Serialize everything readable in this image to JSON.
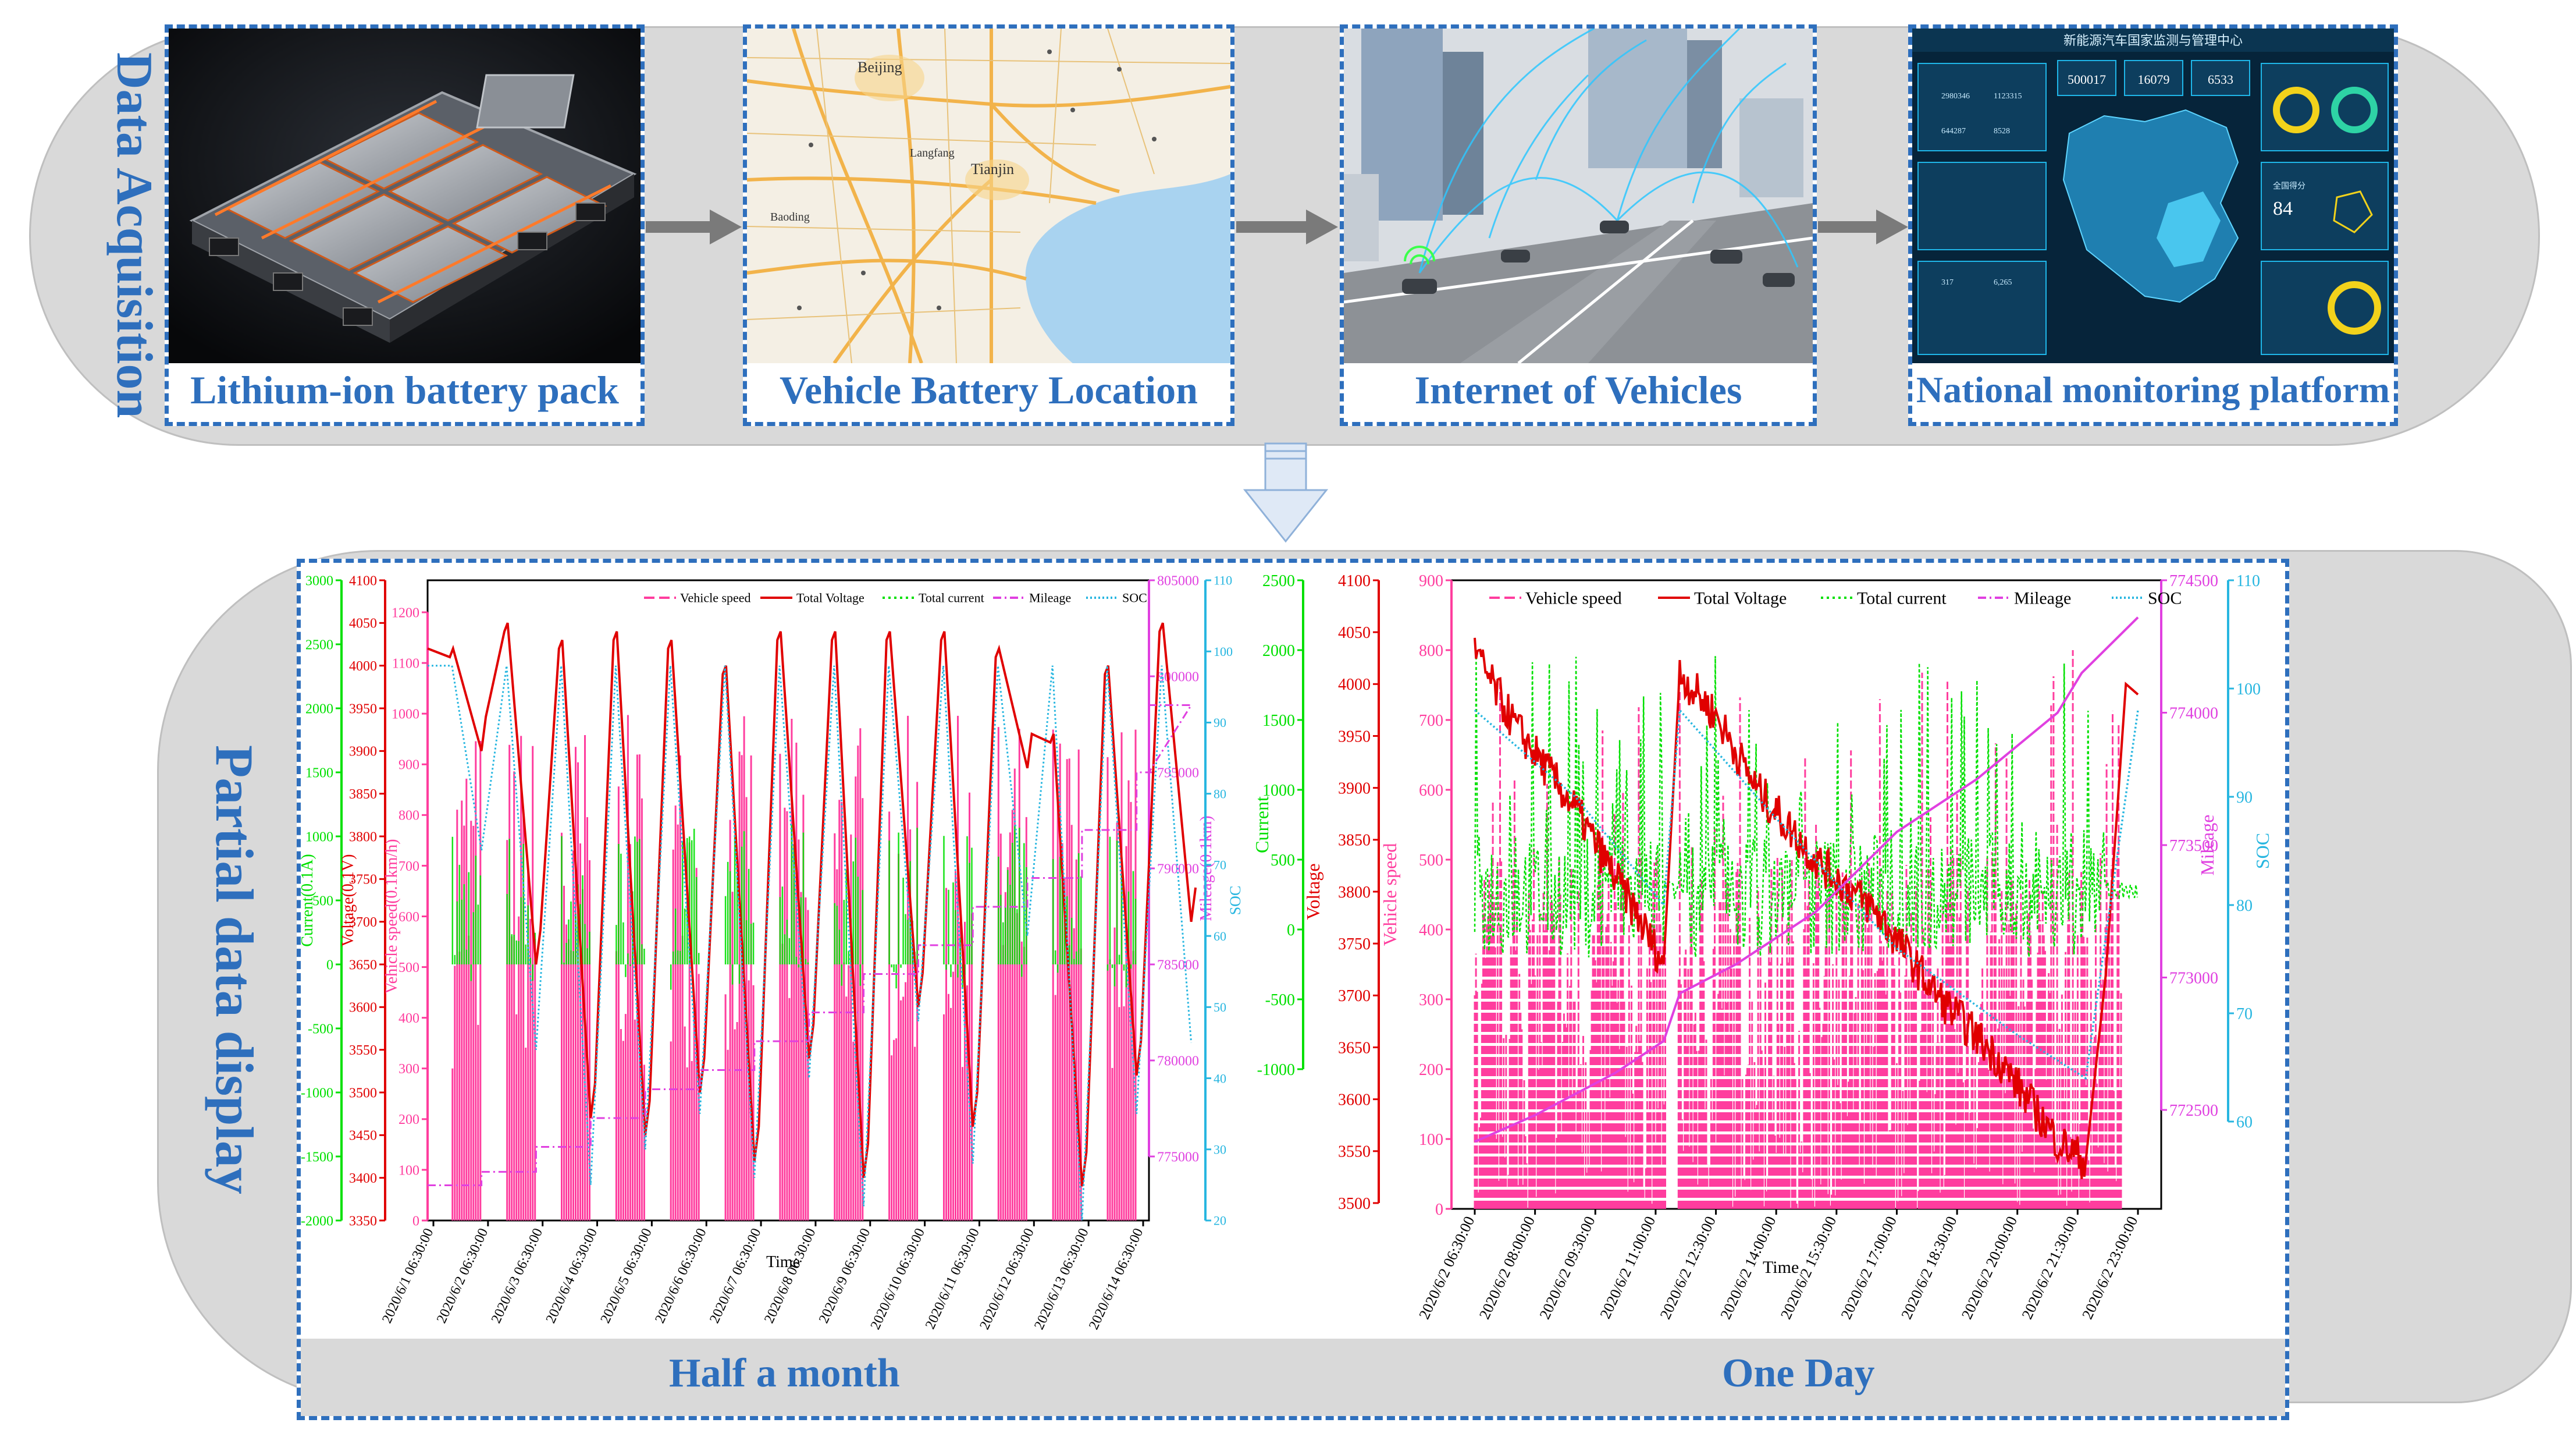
{
  "sections": {
    "acquisition_label": "Data Acquisition",
    "display_label": "Partial data display"
  },
  "panels": [
    {
      "caption": "Lithium-ion battery pack",
      "image": "battery-pack-photo"
    },
    {
      "caption": "Vehicle Battery Location",
      "image": "map-screenshot"
    },
    {
      "caption": "Internet of Vehicles",
      "image": "connected-city-render"
    },
    {
      "caption": "National monitoring platform",
      "image": "dashboard-screenshot"
    }
  ],
  "map": {
    "city_main": "Beijing",
    "city_2": "Tianjin",
    "city_3": "Langfang",
    "city_4": "Baoding"
  },
  "dashboard": {
    "title": "新能源汽车国家监测与管理中心",
    "stats": [
      "500017",
      "16079",
      "6533"
    ],
    "counts": [
      "2980346",
      "1123315",
      "644287",
      "8528"
    ],
    "score_label": "全国得分",
    "score": "84",
    "table_vals": [
      "317",
      "6,265"
    ]
  },
  "bottom_captions": {
    "left": "Half a month",
    "right": "One Day"
  },
  "colors": {
    "accent_blue": "#2e6fbd",
    "speed": "#ff3d9e",
    "voltage": "#e00000",
    "current": "#00e000",
    "mileage": "#e040e0",
    "soc": "#27b6e0"
  },
  "chart_data": [
    {
      "type": "line",
      "title": "Half a month",
      "xlabel": "Time",
      "x_ticks": [
        "2020/6/1 06:30:00",
        "2020/6/2 06:30:00",
        "2020/6/3 06:30:00",
        "2020/6/4 06:30:00",
        "2020/6/5 06:30:00",
        "2020/6/6 06:30:00",
        "2020/6/7 06:30:00",
        "2020/6/8 06:30:00",
        "2020/6/9 06:30:00",
        "2020/6/10 06:30:00",
        "2020/6/11 06:30:00",
        "2020/6/12 06:30:00",
        "2020/6/13 06:30:00",
        "2020/6/14 06:30:00"
      ],
      "legend": [
        "Vehicle speed",
        "Total Voltage",
        "Total current",
        "Mileage",
        "SOC"
      ],
      "axes": {
        "current": {
          "label": "Current(0.1A)",
          "ticks": [
            3000,
            2500,
            2000,
            1500,
            1000,
            500,
            0,
            -500,
            -1000,
            -1500,
            -2000
          ]
        },
        "voltage": {
          "label": "Voltage(0.1V)",
          "ticks": [
            4100,
            4050,
            4000,
            3950,
            3900,
            3850,
            3800,
            3750,
            3700,
            3650,
            3600,
            3550,
            3500,
            3450,
            3400,
            3350
          ]
        },
        "speed": {
          "label": "Vehicle speed(0.1km/h)",
          "ticks": [
            1200,
            1100,
            1000,
            900,
            800,
            700,
            600,
            500,
            400,
            300,
            200,
            100,
            0
          ]
        },
        "mileage": {
          "label": "Mileage(0.1km)",
          "ticks": [
            805000,
            800000,
            795000,
            790000,
            785000,
            780000,
            775000
          ]
        },
        "soc": {
          "label": "SOC",
          "ticks": [
            110,
            100,
            90,
            80,
            70,
            60,
            50,
            40,
            30,
            20
          ]
        }
      },
      "voltage_peaks": [
        4020,
        4050,
        4030,
        4040,
        4030,
        4000,
        4040,
        4040,
        4040,
        4040,
        4020,
        3920,
        4000,
        4050
      ],
      "voltage_troughs": [
        3900,
        3650,
        3470,
        3450,
        3500,
        3420,
        3540,
        3400,
        3600,
        3460,
        3880,
        3390,
        3520,
        3700
      ],
      "mileage_steps": [
        773500,
        774200,
        775500,
        777000,
        778500,
        779500,
        781000,
        782500,
        784500,
        786000,
        788000,
        789500,
        792000,
        795000,
        798500
      ],
      "soc_highs": [
        98,
        98,
        98,
        98,
        98,
        98,
        98,
        98,
        98,
        98,
        98,
        98,
        98,
        98
      ],
      "soc_lows": [
        72,
        44,
        25,
        30,
        35,
        26,
        40,
        22,
        48,
        28,
        60,
        20,
        35,
        45
      ]
    },
    {
      "type": "line",
      "title": "One Day",
      "xlabel": "Time",
      "x_ticks": [
        "2020/6/2 06:30:00",
        "2020/6/2 08:00:00",
        "2020/6/2 09:30:00",
        "2020/6/2 11:00:00",
        "2020/6/2 12:30:00",
        "2020/6/2 14:00:00",
        "2020/6/2 15:30:00",
        "2020/6/2 17:00:00",
        "2020/6/2 18:30:00",
        "2020/6/2 20:00:00",
        "2020/6/2 21:30:00",
        "2020/6/2 23:00:00"
      ],
      "legend": [
        "Vehicle speed",
        "Total Voltage",
        "Total current",
        "Mileage",
        "SOC"
      ],
      "axes": {
        "current": {
          "label": "Current",
          "ticks": [
            2500,
            2000,
            1500,
            1000,
            500,
            0,
            -500,
            -1000
          ]
        },
        "voltage": {
          "label": "Voltage",
          "ticks": [
            4100,
            4050,
            4000,
            3950,
            3900,
            3850,
            3800,
            3750,
            3700,
            3650,
            3600,
            3550,
            3500
          ]
        },
        "speed": {
          "label": "Vehicle speed",
          "ticks": [
            900,
            800,
            700,
            600,
            500,
            400,
            300,
            200,
            100,
            0
          ]
        },
        "mileage": {
          "label": "Mileage",
          "ticks": [
            774500,
            774000,
            773500,
            773000,
            772500
          ]
        },
        "soc": {
          "label": "SOC",
          "ticks": [
            110,
            100,
            90,
            80,
            70,
            60
          ]
        }
      },
      "voltage_series": [
        [
          6.5,
          4030
        ],
        [
          7.5,
          3960
        ],
        [
          9.0,
          3880
        ],
        [
          10.5,
          3780
        ],
        [
          11.2,
          3730
        ],
        [
          11.6,
          4010
        ],
        [
          12.5,
          3970
        ],
        [
          13.5,
          3900
        ],
        [
          15.0,
          3830
        ],
        [
          16.5,
          3780
        ],
        [
          18.0,
          3700
        ],
        [
          19.5,
          3640
        ],
        [
          21.0,
          3560
        ],
        [
          21.7,
          3540
        ],
        [
          22.2,
          3720
        ],
        [
          22.7,
          4000
        ],
        [
          23.0,
          3990
        ]
      ],
      "soc_series": [
        [
          6.5,
          98
        ],
        [
          9.0,
          90
        ],
        [
          11.2,
          80
        ],
        [
          11.6,
          98
        ],
        [
          14.0,
          88
        ],
        [
          17.0,
          76
        ],
        [
          20.0,
          68
        ],
        [
          21.7,
          64
        ],
        [
          23.0,
          98
        ]
      ],
      "mileage_series": [
        [
          6.5,
          772380
        ],
        [
          8.0,
          772480
        ],
        [
          10.0,
          772640
        ],
        [
          11.2,
          772760
        ],
        [
          11.6,
          772940
        ],
        [
          13.0,
          773050
        ],
        [
          15.0,
          773250
        ],
        [
          17.0,
          773550
        ],
        [
          19.0,
          773750
        ],
        [
          21.0,
          774000
        ],
        [
          21.6,
          774150
        ],
        [
          23.0,
          774360
        ]
      ]
    }
  ]
}
